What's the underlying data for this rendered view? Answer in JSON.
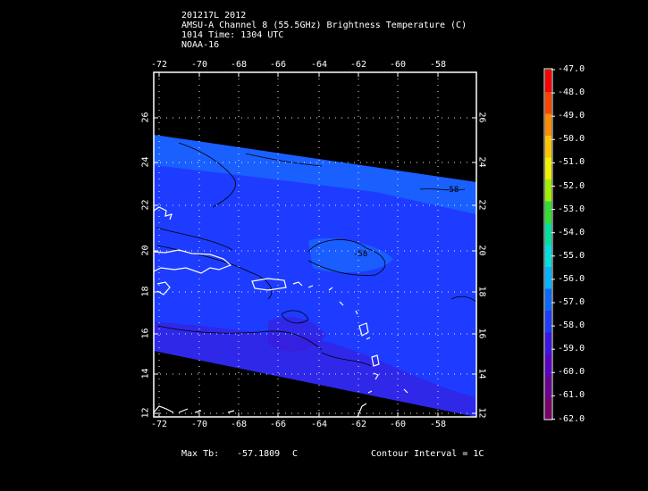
{
  "header": {
    "line1": "201217L 2012",
    "line2": "AMSU-A Channel 8 (55.5GHz) Brightness Temperature (C)",
    "line3": "1014 Time: 1304 UTC",
    "line4": "NOAA-16"
  },
  "axes": {
    "lon_ticks": [
      "-72",
      "-70",
      "-68",
      "-66",
      "-64",
      "-62",
      "-60",
      "-58"
    ],
    "lat_ticks": [
      "12",
      "14",
      "16",
      "18",
      "20",
      "22",
      "24",
      "26"
    ]
  },
  "colorbar": {
    "labels": [
      "-47.0",
      "-48.0",
      "-49.0",
      "-50.0",
      "-51.0",
      "-52.0",
      "-53.0",
      "-54.0",
      "-55.0",
      "-56.0",
      "-57.0",
      "-58.0",
      "-59.0",
      "-60.0",
      "-61.0",
      "-62.0"
    ],
    "colors": [
      "#ff0000",
      "#ff4400",
      "#ff8c00",
      "#ffc400",
      "#f0f000",
      "#a0f000",
      "#30e030",
      "#00e0a0",
      "#00e0e0",
      "#00b4ff",
      "#0a6aff",
      "#1e3cff",
      "#3c14e6",
      "#5a00c8",
      "#6a0090",
      "#7a006a"
    ]
  },
  "contour_labels": [
    "-58",
    "-58"
  ],
  "footer": {
    "max_tb_label": "Max Tb:",
    "max_tb_value": "-57.1809",
    "max_tb_unit": "C",
    "contour_interval": "Contour Interval = 1C"
  }
}
